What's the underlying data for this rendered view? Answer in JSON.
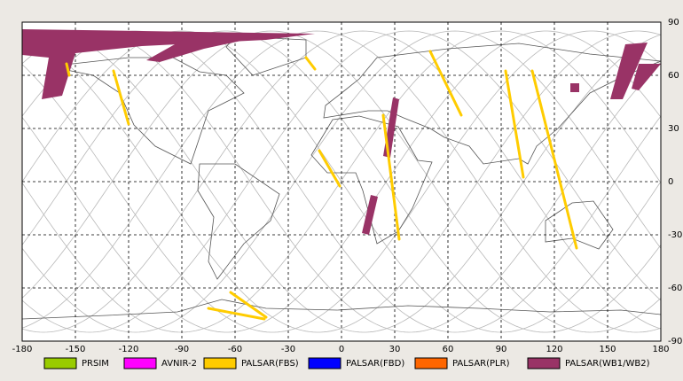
{
  "map": {
    "xlim": [
      -180,
      180
    ],
    "ylim": [
      -90,
      90
    ],
    "xticks": [
      -180,
      -150,
      -120,
      -90,
      -60,
      -30,
      0,
      30,
      60,
      90,
      120,
      150,
      180
    ],
    "yticks": [
      90,
      60,
      30,
      0,
      -30,
      -60,
      -90
    ]
  },
  "legend": [
    {
      "label": "PRSIM",
      "color": "#99cc00"
    },
    {
      "label": "AVNIR-2",
      "color": "#ff00ff"
    },
    {
      "label": "PALSAR(FBS)",
      "color": "#ffcc00"
    },
    {
      "label": "PALSAR(FBD)",
      "color": "#0000ff"
    },
    {
      "label": "PALSAR(PLR)",
      "color": "#ff6600"
    },
    {
      "label": "PALSAR(WB1/WB2)",
      "color": "#993366"
    }
  ]
}
